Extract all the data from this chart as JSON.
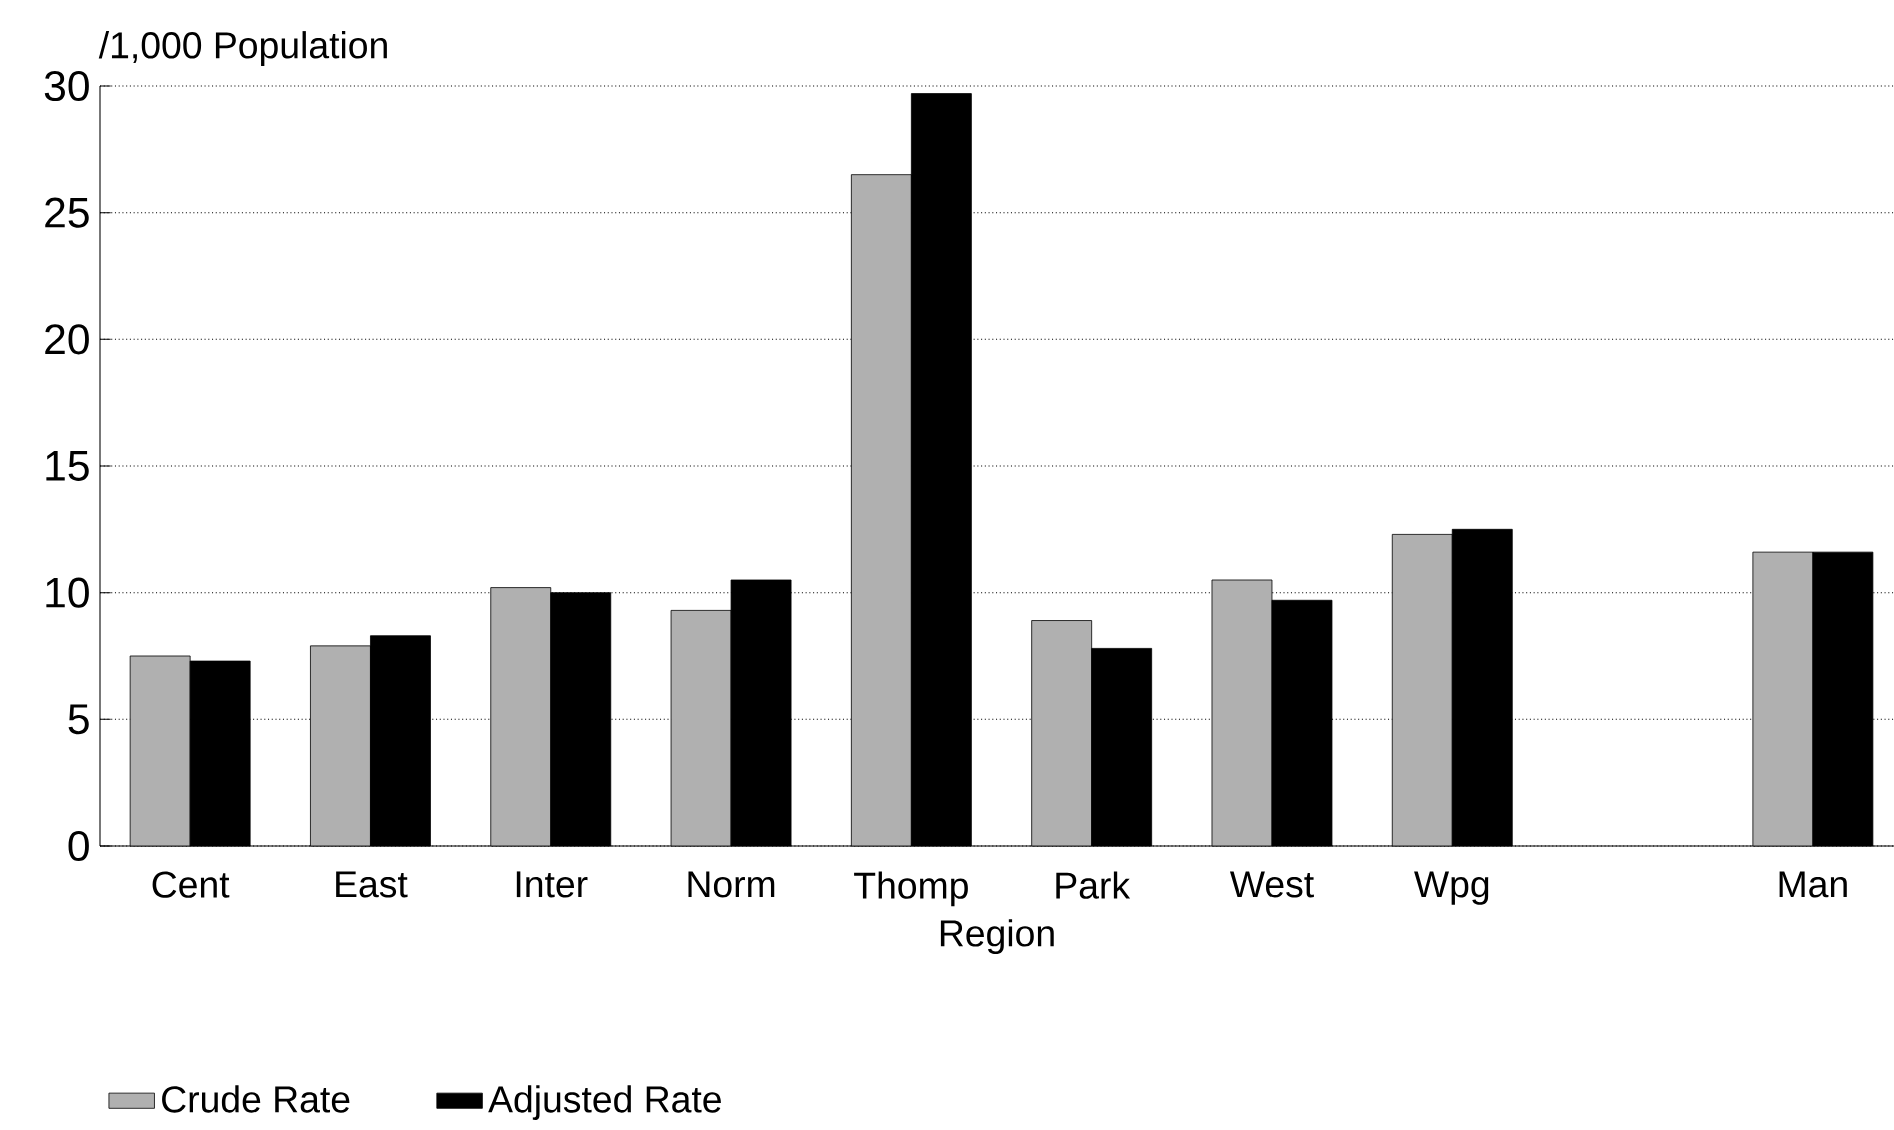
{
  "chart_data": {
    "type": "bar",
    "xlabel": "Region",
    "ylabel": "/1,000 Population",
    "categories": [
      "Cent",
      "East",
      "Inter",
      "Norm",
      "Thomp",
      "Park",
      "West",
      "Wpg",
      null,
      "Man"
    ],
    "series": [
      {
        "name": "Crude Rate",
        "color": "#b0b0b0",
        "values": [
          7.5,
          7.9,
          10.2,
          9.3,
          26.5,
          8.9,
          10.5,
          12.3,
          null,
          11.6
        ]
      },
      {
        "name": "Adjusted Rate",
        "color": "#000000",
        "values": [
          7.3,
          8.3,
          10.0,
          10.5,
          29.7,
          7.8,
          9.7,
          12.5,
          null,
          11.6
        ]
      }
    ],
    "ylim": [
      0,
      30
    ],
    "yticks": [
      0,
      5,
      10,
      15,
      20,
      25,
      30
    ],
    "grid": "y",
    "legend": "bottom"
  }
}
